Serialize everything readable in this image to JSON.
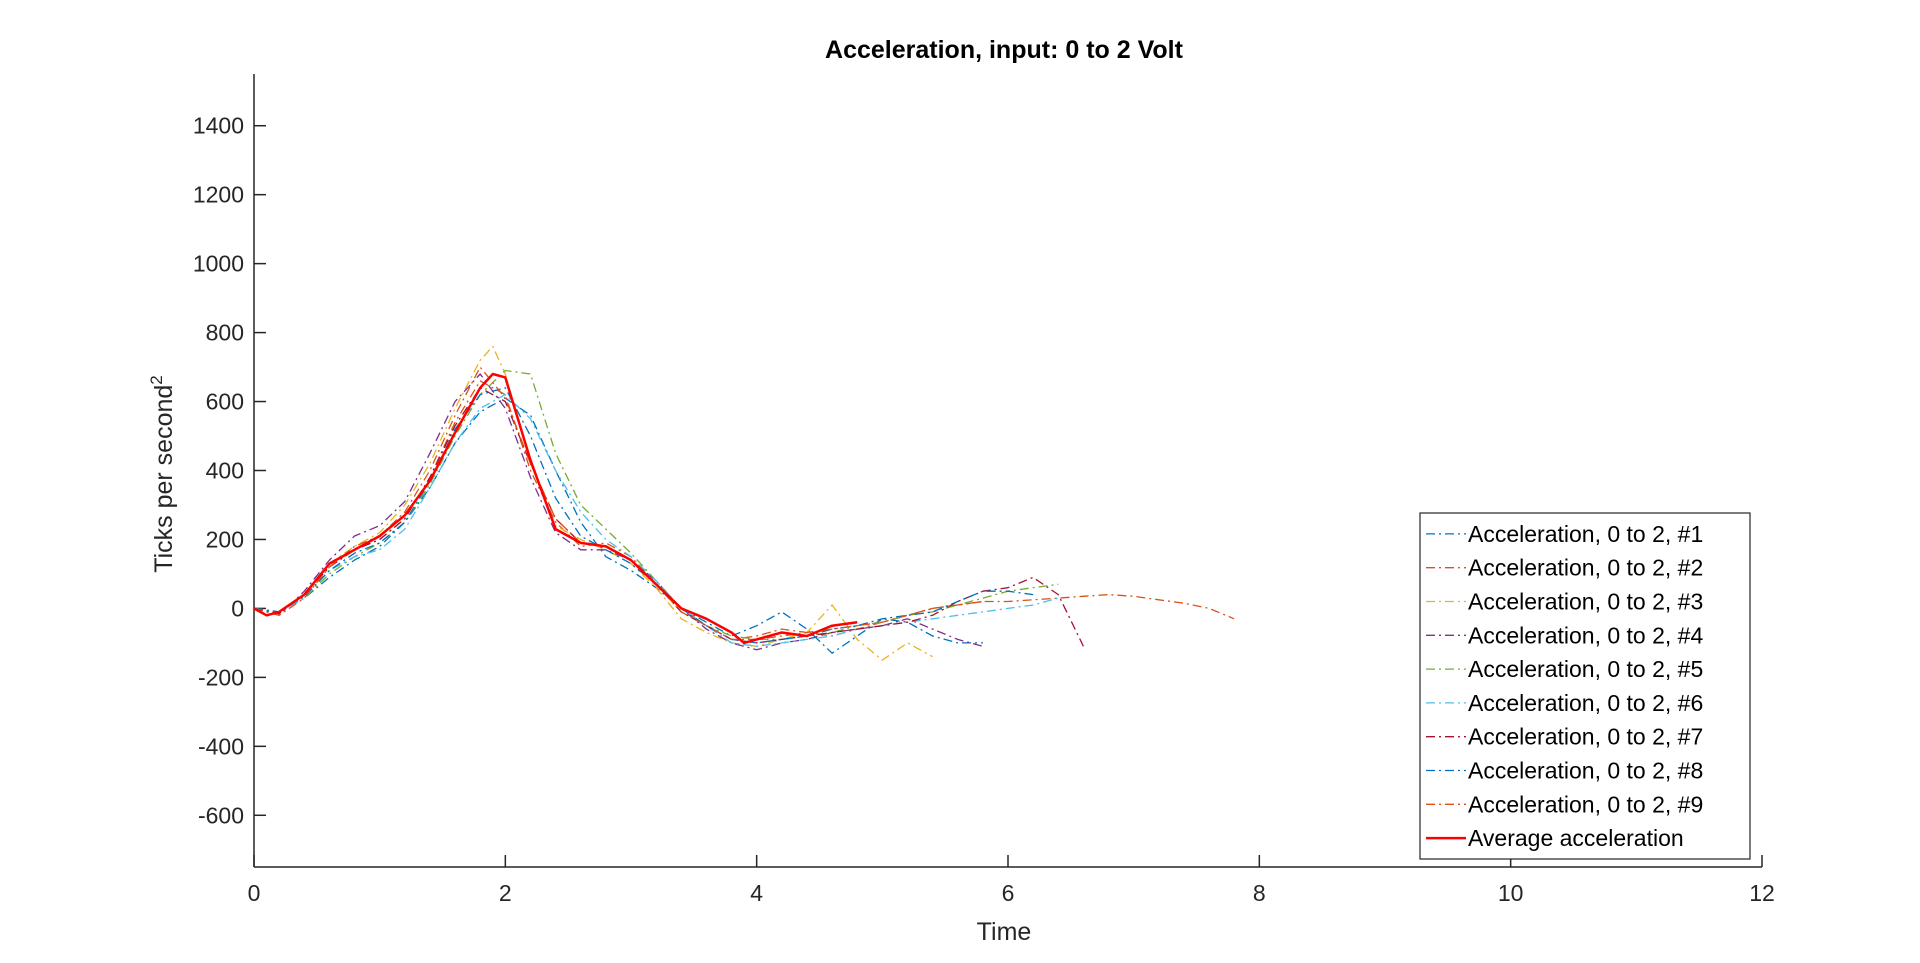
{
  "chart_data": {
    "type": "line",
    "title": "Acceleration, input: 0 to 2 Volt",
    "xlabel": "Time",
    "ylabel": "Ticks per second",
    "ylabel_superscript": "2",
    "xlim": [
      0,
      12
    ],
    "ylim": [
      -750,
      1550
    ],
    "xticks": [
      0,
      2,
      4,
      6,
      8,
      10,
      12
    ],
    "yticks": [
      -600,
      -400,
      -200,
      0,
      200,
      400,
      600,
      800,
      1000,
      1200,
      1400
    ],
    "grid": false,
    "legend_position": "bottom-right",
    "series": [
      {
        "name": "Acceleration, 0 to 2, #1",
        "color": "#0072BD",
        "style": "dashdot",
        "x": [
          0,
          0.2,
          0.4,
          0.6,
          0.8,
          1.0,
          1.2,
          1.4,
          1.6,
          1.8,
          2.0,
          2.2,
          2.4,
          2.6,
          2.8,
          3.0,
          3.2,
          3.4,
          3.6,
          3.8,
          4.0,
          4.2,
          4.4,
          4.6,
          4.8,
          5.0,
          5.2,
          5.4,
          5.6,
          5.8
        ],
        "y": [
          0,
          -10,
          30,
          90,
          140,
          180,
          250,
          350,
          480,
          570,
          610,
          560,
          400,
          250,
          150,
          110,
          60,
          0,
          -40,
          -80,
          -50,
          -10,
          -60,
          -130,
          -80,
          -30,
          -40,
          -80,
          -100,
          -100
        ]
      },
      {
        "name": "Acceleration, 0 to 2, #2",
        "color": "#D95319",
        "style": "dashdot",
        "x": [
          0,
          0.2,
          0.4,
          0.6,
          0.8,
          1.0,
          1.2,
          1.4,
          1.6,
          1.8,
          2.0,
          2.2,
          2.4,
          2.6,
          2.8,
          3.0,
          3.2,
          3.4,
          3.6,
          3.8,
          4.0,
          4.2,
          4.4,
          4.6,
          4.8,
          5.0,
          5.2,
          5.4,
          5.6,
          5.8,
          6.0,
          6.2,
          6.4,
          6.6,
          6.8,
          7.0,
          7.2,
          7.4,
          7.6,
          7.8
        ],
        "y": [
          0,
          -15,
          40,
          120,
          170,
          200,
          260,
          380,
          540,
          660,
          620,
          400,
          250,
          180,
          190,
          150,
          70,
          -10,
          -50,
          -90,
          -80,
          -60,
          -70,
          -80,
          -60,
          -40,
          -20,
          0,
          10,
          20,
          20,
          25,
          30,
          35,
          40,
          35,
          25,
          15,
          0,
          -30
        ]
      },
      {
        "name": "Acceleration, 0 to 2, #3",
        "color": "#EDB120",
        "style": "dashdot",
        "x": [
          0,
          0.2,
          0.4,
          0.6,
          0.8,
          1.0,
          1.2,
          1.4,
          1.6,
          1.8,
          1.9,
          2.0,
          2.2,
          2.4,
          2.6,
          2.8,
          3.0,
          3.2,
          3.4,
          3.6,
          3.8,
          4.0,
          4.2,
          4.4,
          4.6,
          4.8,
          5.0,
          5.2,
          5.4
        ],
        "y": [
          0,
          -10,
          40,
          130,
          180,
          220,
          300,
          420,
          580,
          720,
          760,
          680,
          420,
          240,
          200,
          170,
          130,
          60,
          -30,
          -70,
          -100,
          -110,
          -90,
          -70,
          10,
          -90,
          -150,
          -100,
          -140
        ]
      },
      {
        "name": "Acceleration, 0 to 2, #4",
        "color": "#7E2F8E",
        "style": "dashdot",
        "x": [
          0,
          0.2,
          0.4,
          0.6,
          0.8,
          1.0,
          1.2,
          1.4,
          1.6,
          1.8,
          2.0,
          2.2,
          2.4,
          2.6,
          2.8,
          3.0,
          3.2,
          3.4,
          3.6,
          3.8,
          4.0,
          4.2,
          4.4,
          4.6,
          4.8,
          5.0,
          5.2,
          5.4,
          5.6,
          5.8
        ],
        "y": [
          0,
          -20,
          50,
          140,
          210,
          240,
          310,
          450,
          600,
          680,
          580,
          380,
          220,
          170,
          170,
          140,
          80,
          0,
          -60,
          -100,
          -120,
          -100,
          -90,
          -70,
          -60,
          -50,
          -30,
          -60,
          -90,
          -110
        ]
      },
      {
        "name": "Acceleration, 0 to 2, #5",
        "color": "#77AC30",
        "style": "dashdot",
        "x": [
          0,
          0.2,
          0.4,
          0.6,
          0.8,
          1.0,
          1.2,
          1.4,
          1.6,
          1.8,
          2.0,
          2.2,
          2.4,
          2.6,
          2.8,
          3.0,
          3.2,
          3.4,
          3.6,
          3.8,
          4.0,
          4.2,
          4.4,
          4.6,
          4.8,
          5.0,
          5.2,
          5.4,
          5.6,
          5.8,
          6.0,
          6.2,
          6.4
        ],
        "y": [
          0,
          -10,
          30,
          100,
          150,
          190,
          250,
          360,
          500,
          620,
          690,
          680,
          450,
          300,
          230,
          160,
          80,
          0,
          -50,
          -80,
          -90,
          -90,
          -80,
          -70,
          -50,
          -40,
          -20,
          -10,
          10,
          30,
          50,
          60,
          70
        ]
      },
      {
        "name": "Acceleration, 0 to 2, #6",
        "color": "#4DBEEE",
        "style": "dashdot",
        "x": [
          0,
          0.2,
          0.4,
          0.6,
          0.8,
          1.0,
          1.2,
          1.4,
          1.6,
          1.8,
          2.0,
          2.2,
          2.4,
          2.6,
          2.8,
          3.0,
          3.2,
          3.4,
          3.6,
          3.8,
          4.0,
          4.2,
          4.4,
          4.6,
          4.8,
          5.0,
          5.2,
          5.4,
          5.6,
          5.8,
          6.0,
          6.2,
          6.4
        ],
        "y": [
          0,
          -10,
          30,
          110,
          150,
          170,
          230,
          350,
          480,
          580,
          620,
          550,
          400,
          280,
          200,
          150,
          80,
          0,
          -50,
          -100,
          -110,
          -100,
          -90,
          -80,
          -60,
          -50,
          -40,
          -30,
          -20,
          -10,
          0,
          10,
          30
        ]
      },
      {
        "name": "Acceleration, 0 to 2, #7",
        "color": "#A2142F",
        "style": "dashdot",
        "x": [
          0,
          0.2,
          0.4,
          0.6,
          0.8,
          1.0,
          1.2,
          1.4,
          1.6,
          1.8,
          2.0,
          2.2,
          2.4,
          2.6,
          2.8,
          3.0,
          3.2,
          3.4,
          3.6,
          3.8,
          4.0,
          4.2,
          4.4,
          4.6,
          4.8,
          5.0,
          5.2,
          5.4,
          5.6,
          5.8,
          6.0,
          6.2,
          6.4,
          6.6
        ],
        "y": [
          0,
          -15,
          40,
          120,
          170,
          200,
          260,
          380,
          530,
          640,
          600,
          420,
          260,
          190,
          180,
          140,
          70,
          -10,
          -50,
          -90,
          -100,
          -90,
          -80,
          -70,
          -60,
          -50,
          -40,
          -20,
          20,
          50,
          60,
          90,
          40,
          -110
        ]
      },
      {
        "name": "Acceleration, 0 to 2, #8",
        "color": "#0072BD",
        "style": "dashdot",
        "x": [
          0,
          0.2,
          0.4,
          0.6,
          0.8,
          1.0,
          1.2,
          1.4,
          1.6,
          1.8,
          2.0,
          2.2,
          2.4,
          2.6,
          2.8,
          3.0,
          3.2,
          3.4,
          3.6,
          3.8,
          4.0,
          4.2,
          4.4,
          4.6,
          4.8,
          5.0,
          5.2,
          5.4,
          5.6,
          5.8,
          6.0,
          6.2
        ],
        "y": [
          0,
          -10,
          35,
          110,
          160,
          190,
          250,
          370,
          520,
          620,
          640,
          500,
          320,
          210,
          170,
          130,
          70,
          0,
          -50,
          -90,
          -100,
          -90,
          -80,
          -60,
          -50,
          -30,
          -20,
          -10,
          20,
          50,
          50,
          40
        ]
      },
      {
        "name": "Acceleration, 0 to 2, #9",
        "color": "#D95319",
        "style": "dashdot",
        "x": [
          0,
          0.2,
          0.4,
          0.6,
          0.8,
          1.0,
          1.2,
          1.4,
          1.6,
          1.8,
          2.0,
          2.2,
          2.4,
          2.6,
          2.8,
          3.0,
          3.2,
          3.4,
          3.6,
          3.8,
          4.0,
          4.2,
          4.4,
          4.6,
          4.8,
          5.0,
          5.2,
          5.4,
          5.6,
          5.8
        ],
        "y": [
          0,
          -20,
          30,
          120,
          180,
          210,
          280,
          400,
          560,
          700,
          610,
          420,
          260,
          190,
          180,
          140,
          70,
          -10,
          -50,
          -90,
          -90,
          -80,
          -70,
          -60,
          -50,
          -40,
          -20,
          0,
          10,
          20
        ]
      },
      {
        "name": "Average acceleration",
        "color": "#FF0000",
        "style": "solid",
        "x": [
          0,
          0.1,
          0.2,
          0.4,
          0.6,
          0.8,
          1.0,
          1.2,
          1.4,
          1.6,
          1.8,
          1.9,
          2.0,
          2.1,
          2.2,
          2.4,
          2.6,
          2.8,
          3.0,
          3.2,
          3.4,
          3.6,
          3.8,
          3.9,
          4.0,
          4.2,
          4.4,
          4.6,
          4.8
        ],
        "y": [
          0,
          -20,
          -10,
          40,
          130,
          170,
          210,
          270,
          370,
          510,
          640,
          680,
          670,
          550,
          430,
          230,
          190,
          180,
          140,
          70,
          0,
          -30,
          -70,
          -100,
          -90,
          -70,
          -80,
          -50,
          -40
        ]
      }
    ]
  }
}
